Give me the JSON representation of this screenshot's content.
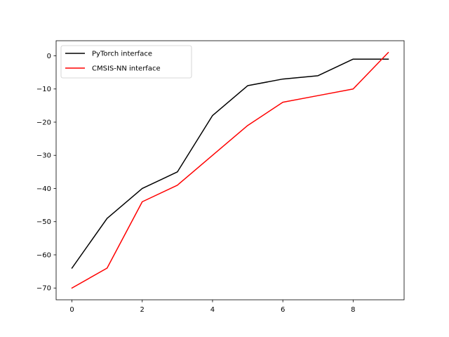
{
  "chart_data": {
    "type": "line",
    "title": "",
    "xlabel": "",
    "ylabel": "",
    "x": [
      0,
      1,
      2,
      3,
      4,
      5,
      6,
      7,
      8,
      9
    ],
    "series": [
      {
        "name": "PyTorch interface",
        "color": "#000000",
        "values": [
          -64,
          -49,
          -40,
          -35,
          -18,
          -9,
          -7,
          -6,
          -1,
          -1
        ]
      },
      {
        "name": "CMSIS-NN interface",
        "color": "#ff0000",
        "values": [
          -70,
          -64,
          -44,
          -39,
          -30,
          -21,
          -14,
          -12,
          -10,
          1
        ]
      }
    ],
    "xlim": [
      -0.45,
      9.45
    ],
    "ylim": [
      -73.55,
      4.55
    ],
    "xticks": [
      0,
      2,
      4,
      6,
      8
    ],
    "yticks": [
      0,
      -10,
      -20,
      -30,
      -40,
      -50,
      -60,
      -70
    ],
    "xtick_labels": [
      "0",
      "2",
      "4",
      "6",
      "8"
    ],
    "ytick_labels": [
      "0",
      "−10",
      "−20",
      "−30",
      "−40",
      "−50",
      "−60",
      "−70"
    ],
    "grid": false,
    "legend_position": "upper-left"
  }
}
